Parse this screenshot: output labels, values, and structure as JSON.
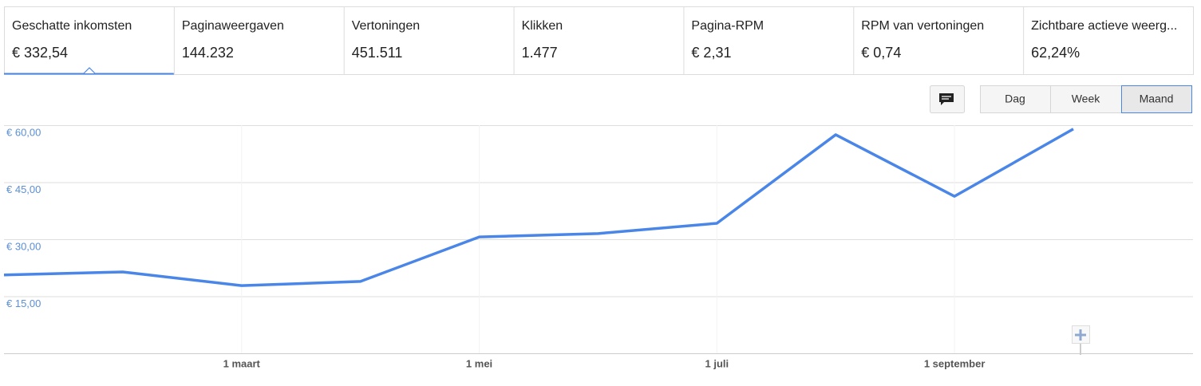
{
  "tabs": [
    {
      "label": "Geschatte inkomsten",
      "value": "€ 332,54"
    },
    {
      "label": "Paginaweergaven",
      "value": "144.232"
    },
    {
      "label": "Vertoningen",
      "value": "451.511"
    },
    {
      "label": "Klikken",
      "value": "1.477"
    },
    {
      "label": "Pagina-RPM",
      "value": "€ 2,31"
    },
    {
      "label": "RPM van vertoningen",
      "value": "€ 0,74"
    },
    {
      "label": "Zichtbare actieve weerg...",
      "value": "62,24%"
    }
  ],
  "buttons": [
    "Dag",
    "Week",
    "Maand"
  ],
  "chart_data": {
    "type": "line",
    "categories": [
      null,
      null,
      "1 maart",
      null,
      "1 mei",
      null,
      "1 juli",
      null,
      "1 september",
      null
    ],
    "series": [
      {
        "color": "#4a86e8",
        "values": [
          20.6,
          21.4,
          17.8,
          18.9,
          30.6,
          31.5,
          34.2,
          57.5,
          41.3,
          59.0
        ]
      }
    ],
    "ylim": [
      0,
      60
    ],
    "yticks": [
      {
        "value": 15,
        "label": "€ 15,00"
      },
      {
        "value": 30,
        "label": "€ 30,00"
      },
      {
        "value": 45,
        "label": "€ 45,00"
      },
      {
        "value": 60,
        "label": "€ 60,00"
      }
    ],
    "grid": true
  }
}
